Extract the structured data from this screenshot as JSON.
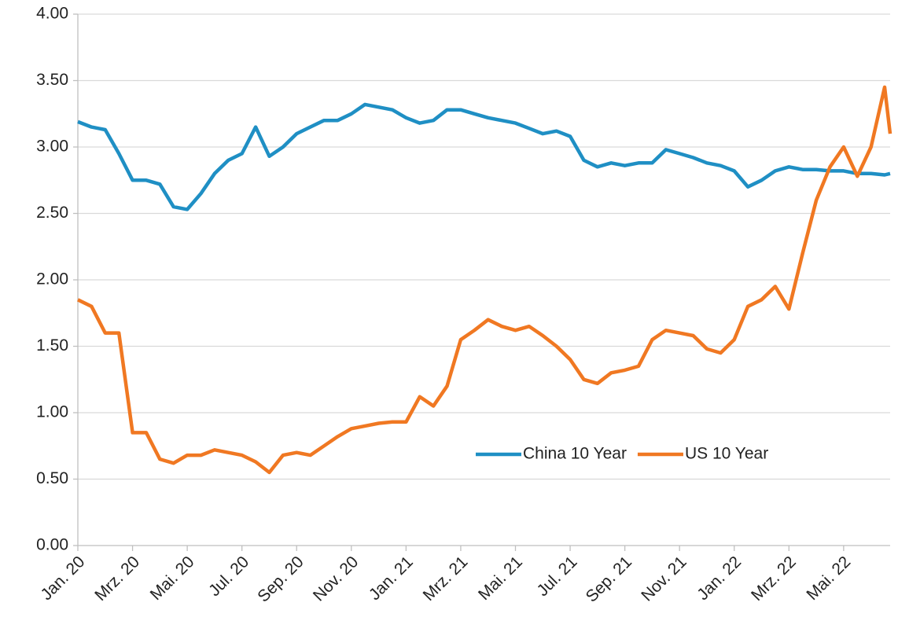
{
  "chart_data": {
    "type": "line",
    "x": [
      0,
      0.5,
      1,
      1.5,
      2,
      2.5,
      3,
      3.5,
      4,
      4.5,
      5,
      5.5,
      6,
      6.5,
      7,
      7.5,
      8,
      8.5,
      9,
      9.5,
      10,
      10.5,
      11,
      11.5,
      12,
      12.5,
      13,
      13.5,
      14,
      14.5,
      15,
      15.5,
      16,
      16.5,
      17,
      17.5,
      18,
      18.5,
      19,
      19.5,
      20,
      20.5,
      21,
      21.5,
      22,
      22.5,
      23,
      23.5,
      24,
      24.5,
      25,
      25.5,
      26,
      26.5,
      27,
      27.5,
      28,
      28.5,
      29,
      29.5,
      29.7
    ],
    "series": [
      {
        "name": "China 10 Year",
        "color": "#1f8fc4",
        "values": [
          3.19,
          3.15,
          3.13,
          2.95,
          2.75,
          2.75,
          2.72,
          2.55,
          2.53,
          2.65,
          2.8,
          2.9,
          2.95,
          3.15,
          2.93,
          3.0,
          3.1,
          3.15,
          3.2,
          3.2,
          3.25,
          3.32,
          3.3,
          3.28,
          3.22,
          3.18,
          3.2,
          3.28,
          3.28,
          3.25,
          3.22,
          3.2,
          3.18,
          3.14,
          3.1,
          3.12,
          3.08,
          2.9,
          2.85,
          2.88,
          2.86,
          2.88,
          2.88,
          2.98,
          2.95,
          2.92,
          2.88,
          2.86,
          2.82,
          2.7,
          2.75,
          2.82,
          2.85,
          2.83,
          2.83,
          2.82,
          2.82,
          2.8,
          2.8,
          2.79,
          2.8
        ]
      },
      {
        "name": "US 10 Year",
        "color": "#f07822",
        "values": [
          1.85,
          1.8,
          1.6,
          1.6,
          0.85,
          0.85,
          0.65,
          0.62,
          0.68,
          0.68,
          0.72,
          0.7,
          0.68,
          0.63,
          0.55,
          0.68,
          0.7,
          0.68,
          0.75,
          0.82,
          0.88,
          0.9,
          0.92,
          0.93,
          0.93,
          1.12,
          1.05,
          1.2,
          1.55,
          1.62,
          1.7,
          1.65,
          1.62,
          1.65,
          1.58,
          1.5,
          1.4,
          1.25,
          1.22,
          1.3,
          1.32,
          1.35,
          1.55,
          1.62,
          1.6,
          1.58,
          1.48,
          1.45,
          1.55,
          1.8,
          1.85,
          1.95,
          1.78,
          2.2,
          2.6,
          2.85,
          3.0,
          2.78,
          3.0,
          3.45,
          3.1
        ]
      }
    ],
    "xlim": [
      0,
      29.7
    ],
    "xticks": [
      {
        "value": 0,
        "label": "Jan. 20"
      },
      {
        "value": 2,
        "label": "Mrz. 20"
      },
      {
        "value": 4,
        "label": "Mai. 20"
      },
      {
        "value": 6,
        "label": "Jul. 20"
      },
      {
        "value": 8,
        "label": "Sep. 20"
      },
      {
        "value": 10,
        "label": "Nov. 20"
      },
      {
        "value": 12,
        "label": "Jan. 21"
      },
      {
        "value": 14,
        "label": "Mrz. 21"
      },
      {
        "value": 16,
        "label": "Mai. 21"
      },
      {
        "value": 18,
        "label": "Jul. 21"
      },
      {
        "value": 20,
        "label": "Sep. 21"
      },
      {
        "value": 22,
        "label": "Nov. 21"
      },
      {
        "value": 24,
        "label": "Jan. 22"
      },
      {
        "value": 26,
        "label": "Mrz. 22"
      },
      {
        "value": 28,
        "label": "Mai. 22"
      }
    ],
    "ylim": [
      0,
      4
    ],
    "yticks": [
      {
        "value": 0,
        "label": "0.00"
      },
      {
        "value": 0.5,
        "label": "0.50"
      },
      {
        "value": 1,
        "label": "1.00"
      },
      {
        "value": 1.5,
        "label": "1.50"
      },
      {
        "value": 2,
        "label": "2.00"
      },
      {
        "value": 2.5,
        "label": "2.50"
      },
      {
        "value": 3,
        "label": "3.00"
      },
      {
        "value": 3.5,
        "label": "3.50"
      },
      {
        "value": 4,
        "label": "4.00"
      }
    ],
    "grid": true,
    "legend": "right"
  }
}
